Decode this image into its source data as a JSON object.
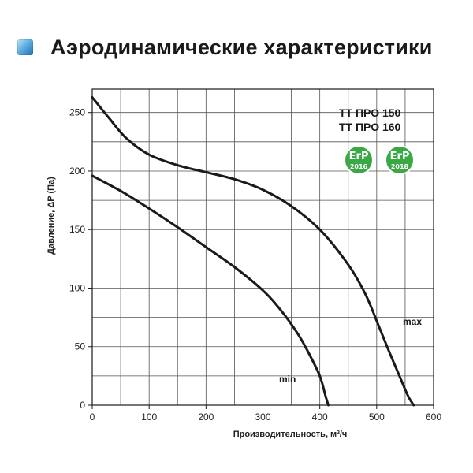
{
  "header": {
    "title": "Аэродинамические характеристики",
    "icon": "blue-square-icon",
    "icon_color": "#2a86c9"
  },
  "chart_data": {
    "type": "line",
    "title": "",
    "xlabel": "Производительность,  м³/ч",
    "ylabel": "Давление, ΔP (Па)",
    "xlim": [
      0,
      600
    ],
    "ylim": [
      0,
      270
    ],
    "xticks": [
      0,
      100,
      200,
      300,
      400,
      500,
      600
    ],
    "yticks": [
      0,
      50,
      100,
      150,
      200,
      250
    ],
    "grid": true,
    "grid_x_step": 50,
    "grid_y_step": 25,
    "series": [
      {
        "name": "max",
        "color": "#1a1a1a",
        "x": [
          0,
          30,
          60,
          100,
          150,
          200,
          250,
          300,
          350,
          400,
          450,
          480,
          500,
          520,
          540,
          555,
          565
        ],
        "y": [
          263,
          245,
          228,
          214,
          205,
          199,
          193,
          184,
          170,
          150,
          120,
          95,
          72,
          48,
          25,
          8,
          0
        ]
      },
      {
        "name": "min",
        "color": "#1a1a1a",
        "x": [
          0,
          50,
          100,
          150,
          200,
          250,
          300,
          330,
          360,
          380,
          400,
          410,
          415
        ],
        "y": [
          196,
          183,
          168,
          152,
          135,
          118,
          98,
          82,
          62,
          45,
          25,
          8,
          0
        ]
      }
    ],
    "annotations": {
      "models": [
        "ТТ ПРО 150",
        "ТТ ПРО 160"
      ],
      "series_labels": {
        "max": "max",
        "min": "min"
      }
    },
    "badges": [
      {
        "text_top": "ErP",
        "text_bottom": "2016",
        "color": "#3aa845"
      },
      {
        "text_top": "ErP",
        "text_bottom": "2018",
        "color": "#3aa845"
      }
    ]
  }
}
